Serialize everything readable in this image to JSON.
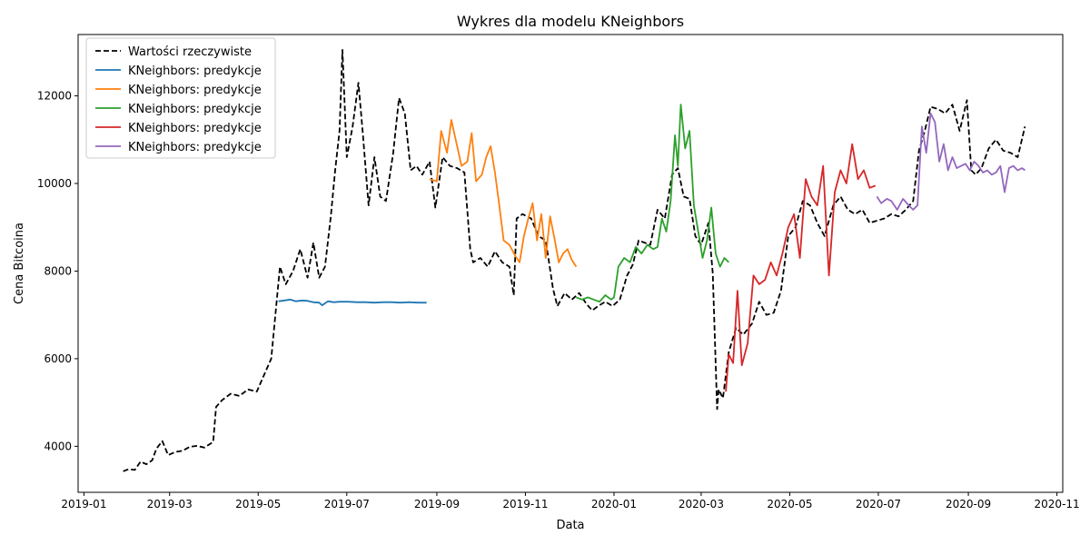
{
  "chart_data": {
    "type": "line",
    "title": "Wykres dla modelu KNeighbors",
    "xlabel": "Data",
    "ylabel": "Cena Bitcoina",
    "grid": false,
    "legend_placement": "top-left",
    "xlim": [
      "2018-12-28",
      "2020-11-05"
    ],
    "ylim": [
      2950,
      13400
    ],
    "x_ticks": [
      "2019-01",
      "2019-03",
      "2019-05",
      "2019-07",
      "2019-09",
      "2019-11",
      "2020-01",
      "2020-03",
      "2020-05",
      "2020-07",
      "2020-09",
      "2020-11"
    ],
    "y_ticks": [
      4000,
      6000,
      8000,
      10000,
      12000
    ],
    "series": [
      {
        "name": "Wartości rzeczywiste",
        "color": "#000000",
        "dashed": true,
        "x": [
          "2019-01-28",
          "2019-02-01",
          "2019-02-05",
          "2019-02-09",
          "2019-02-13",
          "2019-02-17",
          "2019-02-20",
          "2019-02-24",
          "2019-02-28",
          "2019-03-05",
          "2019-03-10",
          "2019-03-15",
          "2019-03-20",
          "2019-03-25",
          "2019-03-31",
          "2019-04-02",
          "2019-04-06",
          "2019-04-12",
          "2019-04-18",
          "2019-04-24",
          "2019-04-30",
          "2019-05-06",
          "2019-05-10",
          "2019-05-13",
          "2019-05-16",
          "2019-05-20",
          "2019-05-25",
          "2019-05-30",
          "2019-06-04",
          "2019-06-08",
          "2019-06-12",
          "2019-06-16",
          "2019-06-20",
          "2019-06-23",
          "2019-06-26",
          "2019-06-28",
          "2019-07-01",
          "2019-07-05",
          "2019-07-09",
          "2019-07-12",
          "2019-07-16",
          "2019-07-20",
          "2019-07-24",
          "2019-07-28",
          "2019-08-02",
          "2019-08-06",
          "2019-08-10",
          "2019-08-14",
          "2019-08-18",
          "2019-08-22",
          "2019-08-27",
          "2019-08-31",
          "2019-09-05",
          "2019-09-10",
          "2019-09-15",
          "2019-09-20",
          "2019-09-24",
          "2019-09-26",
          "2019-10-01",
          "2019-10-06",
          "2019-10-11",
          "2019-10-16",
          "2019-10-21",
          "2019-10-24",
          "2019-10-26",
          "2019-10-30",
          "2019-11-05",
          "2019-11-10",
          "2019-11-15",
          "2019-11-20",
          "2019-11-23",
          "2019-11-28",
          "2019-12-03",
          "2019-12-08",
          "2019-12-13",
          "2019-12-17",
          "2019-12-21",
          "2019-12-26",
          "2019-12-31",
          "2020-01-05",
          "2020-01-10",
          "2020-01-14",
          "2020-01-18",
          "2020-01-22",
          "2020-01-26",
          "2020-01-31",
          "2020-02-05",
          "2020-02-10",
          "2020-02-14",
          "2020-02-18",
          "2020-02-22",
          "2020-02-26",
          "2020-03-01",
          "2020-03-06",
          "2020-03-09",
          "2020-03-12",
          "2020-03-13",
          "2020-03-16",
          "2020-03-20",
          "2020-03-25",
          "2020-03-30",
          "2020-04-05",
          "2020-04-10",
          "2020-04-15",
          "2020-04-20",
          "2020-04-25",
          "2020-04-30",
          "2020-05-05",
          "2020-05-10",
          "2020-05-15",
          "2020-05-20",
          "2020-05-25",
          "2020-05-31",
          "2020-06-05",
          "2020-06-10",
          "2020-06-15",
          "2020-06-20",
          "2020-06-25",
          "2020-06-30",
          "2020-07-05",
          "2020-07-10",
          "2020-07-15",
          "2020-07-20",
          "2020-07-25",
          "2020-07-29",
          "2020-08-02",
          "2020-08-06",
          "2020-08-11",
          "2020-08-16",
          "2020-08-21",
          "2020-08-26",
          "2020-08-31",
          "2020-09-03",
          "2020-09-06",
          "2020-09-10",
          "2020-09-15",
          "2020-09-20",
          "2020-09-25",
          "2020-09-30",
          "2020-10-05",
          "2020-10-10"
        ],
        "values": [
          3430,
          3480,
          3460,
          3650,
          3590,
          3680,
          3950,
          4120,
          3800,
          3870,
          3900,
          3990,
          4010,
          3970,
          4100,
          4900,
          5050,
          5200,
          5150,
          5300,
          5250,
          5700,
          6000,
          7050,
          8100,
          7700,
          8000,
          8500,
          7850,
          8650,
          7850,
          8100,
          9250,
          10300,
          11200,
          13050,
          10600,
          11300,
          12300,
          11150,
          9500,
          10600,
          9700,
          9600,
          10700,
          11950,
          11600,
          10300,
          10400,
          10200,
          10500,
          9450,
          10600,
          10400,
          10350,
          10250,
          8500,
          8200,
          8300,
          8100,
          8450,
          8200,
          8100,
          7450,
          9200,
          9300,
          9200,
          8800,
          8700,
          7600,
          7200,
          7500,
          7350,
          7500,
          7250,
          7100,
          7200,
          7300,
          7200,
          7350,
          7900,
          8150,
          8700,
          8650,
          8600,
          9400,
          9200,
          10200,
          10350,
          9700,
          9650,
          8800,
          8600,
          9100,
          7950,
          4850,
          5300,
          5100,
          6150,
          6700,
          6550,
          6800,
          7300,
          7000,
          7050,
          7550,
          8800,
          9000,
          9600,
          9500,
          9100,
          8800,
          9500,
          9700,
          9400,
          9300,
          9400,
          9100,
          9150,
          9200,
          9300,
          9250,
          9400,
          9600,
          10750,
          11200,
          11750,
          11700,
          11600,
          11800,
          11200,
          11900,
          10300,
          10200,
          10350,
          10800,
          11000,
          10750,
          10700,
          10600,
          11300
        ]
      },
      {
        "name": "KNeighbors: predykcje",
        "color": "#1f77b4",
        "dashed": false,
        "x": [
          "2019-05-15",
          "2019-05-19",
          "2019-05-23",
          "2019-05-27",
          "2019-05-31",
          "2019-06-04",
          "2019-06-08",
          "2019-06-12",
          "2019-06-14",
          "2019-06-18",
          "2019-06-22",
          "2019-06-26",
          "2019-07-02",
          "2019-07-08",
          "2019-07-14",
          "2019-07-20",
          "2019-07-26",
          "2019-08-01",
          "2019-08-07",
          "2019-08-13",
          "2019-08-19",
          "2019-08-25"
        ],
        "values": [
          7310,
          7330,
          7350,
          7310,
          7330,
          7320,
          7290,
          7280,
          7220,
          7310,
          7290,
          7300,
          7300,
          7290,
          7290,
          7280,
          7290,
          7290,
          7280,
          7290,
          7280,
          7280
        ]
      },
      {
        "name": "KNeighbors: predykcje",
        "color": "#ff7f0e",
        "dashed": false,
        "x": [
          "2019-08-27",
          "2019-09-01",
          "2019-09-04",
          "2019-09-08",
          "2019-09-11",
          "2019-09-14",
          "2019-09-18",
          "2019-09-22",
          "2019-09-25",
          "2019-09-28",
          "2019-10-02",
          "2019-10-05",
          "2019-10-08",
          "2019-10-11",
          "2019-10-14",
          "2019-10-17",
          "2019-10-21",
          "2019-10-25",
          "2019-10-28",
          "2019-10-31",
          "2019-11-03",
          "2019-11-06",
          "2019-11-09",
          "2019-11-12",
          "2019-11-15",
          "2019-11-18",
          "2019-11-21",
          "2019-11-24",
          "2019-11-27",
          "2019-11-30",
          "2019-12-03",
          "2019-12-06"
        ],
        "values": [
          10100,
          10050,
          11200,
          10700,
          11450,
          11000,
          10400,
          10500,
          11150,
          10050,
          10200,
          10600,
          10850,
          10250,
          9500,
          8700,
          8600,
          8350,
          8200,
          8800,
          9200,
          9550,
          8700,
          9300,
          8300,
          9250,
          8750,
          8200,
          8400,
          8500,
          8250,
          8100
        ]
      },
      {
        "name": "KNeighbors: predykcje",
        "color": "#2ca02c",
        "dashed": false,
        "x": [
          "2019-12-06",
          "2019-12-10",
          "2019-12-14",
          "2019-12-18",
          "2019-12-22",
          "2019-12-26",
          "2019-12-30",
          "2020-01-01",
          "2020-01-04",
          "2020-01-08",
          "2020-01-12",
          "2020-01-16",
          "2020-01-20",
          "2020-01-24",
          "2020-01-28",
          "2020-01-31",
          "2020-02-03",
          "2020-02-06",
          "2020-02-09",
          "2020-02-12",
          "2020-02-14",
          "2020-02-16",
          "2020-02-19",
          "2020-02-22",
          "2020-02-25",
          "2020-02-28",
          "2020-03-02",
          "2020-03-05",
          "2020-03-08",
          "2020-03-11",
          "2020-03-14",
          "2020-03-17",
          "2020-03-20"
        ],
        "values": [
          7400,
          7350,
          7400,
          7350,
          7300,
          7450,
          7350,
          7400,
          8100,
          8300,
          8200,
          8550,
          8400,
          8600,
          8500,
          8550,
          9200,
          8900,
          9600,
          11100,
          10400,
          11800,
          10800,
          11200,
          9500,
          8900,
          8300,
          8700,
          9450,
          8400,
          8100,
          8300,
          8200
        ]
      },
      {
        "name": "KNeighbors: predykcje",
        "color": "#d62728",
        "dashed": false,
        "x": [
          "2020-03-18",
          "2020-03-20",
          "2020-03-23",
          "2020-03-26",
          "2020-03-29",
          "2020-04-02",
          "2020-04-06",
          "2020-04-10",
          "2020-04-14",
          "2020-04-18",
          "2020-04-22",
          "2020-04-26",
          "2020-04-30",
          "2020-05-04",
          "2020-05-08",
          "2020-05-12",
          "2020-05-16",
          "2020-05-20",
          "2020-05-24",
          "2020-05-28",
          "2020-06-01",
          "2020-06-05",
          "2020-06-09",
          "2020-06-13",
          "2020-06-17",
          "2020-06-21",
          "2020-06-25",
          "2020-06-29"
        ],
        "values": [
          5250,
          6100,
          5900,
          7550,
          5850,
          6350,
          7900,
          7700,
          7800,
          8200,
          7900,
          8400,
          9000,
          9300,
          8300,
          10100,
          9700,
          9500,
          10400,
          7900,
          9800,
          10300,
          10000,
          10900,
          10100,
          10300,
          9900,
          9950
        ]
      },
      {
        "name": "KNeighbors: predykcje",
        "color": "#9467bd",
        "dashed": false,
        "x": [
          "2020-06-30",
          "2020-07-03",
          "2020-07-07",
          "2020-07-10",
          "2020-07-14",
          "2020-07-18",
          "2020-07-22",
          "2020-07-25",
          "2020-07-28",
          "2020-07-31",
          "2020-08-03",
          "2020-08-06",
          "2020-08-09",
          "2020-08-12",
          "2020-08-15",
          "2020-08-18",
          "2020-08-21",
          "2020-08-24",
          "2020-08-27",
          "2020-08-30",
          "2020-09-02",
          "2020-09-05",
          "2020-09-08",
          "2020-09-11",
          "2020-09-14",
          "2020-09-17",
          "2020-09-20",
          "2020-09-23",
          "2020-09-26",
          "2020-09-29",
          "2020-10-02",
          "2020-10-05",
          "2020-10-08",
          "2020-10-10"
        ],
        "values": [
          9700,
          9550,
          9650,
          9600,
          9400,
          9650,
          9500,
          9400,
          9500,
          11300,
          10700,
          11600,
          11400,
          10500,
          10900,
          10300,
          10600,
          10350,
          10400,
          10450,
          10300,
          10500,
          10400,
          10250,
          10300,
          10200,
          10250,
          10400,
          9800,
          10350,
          10400,
          10300,
          10350,
          10300
        ]
      }
    ]
  }
}
